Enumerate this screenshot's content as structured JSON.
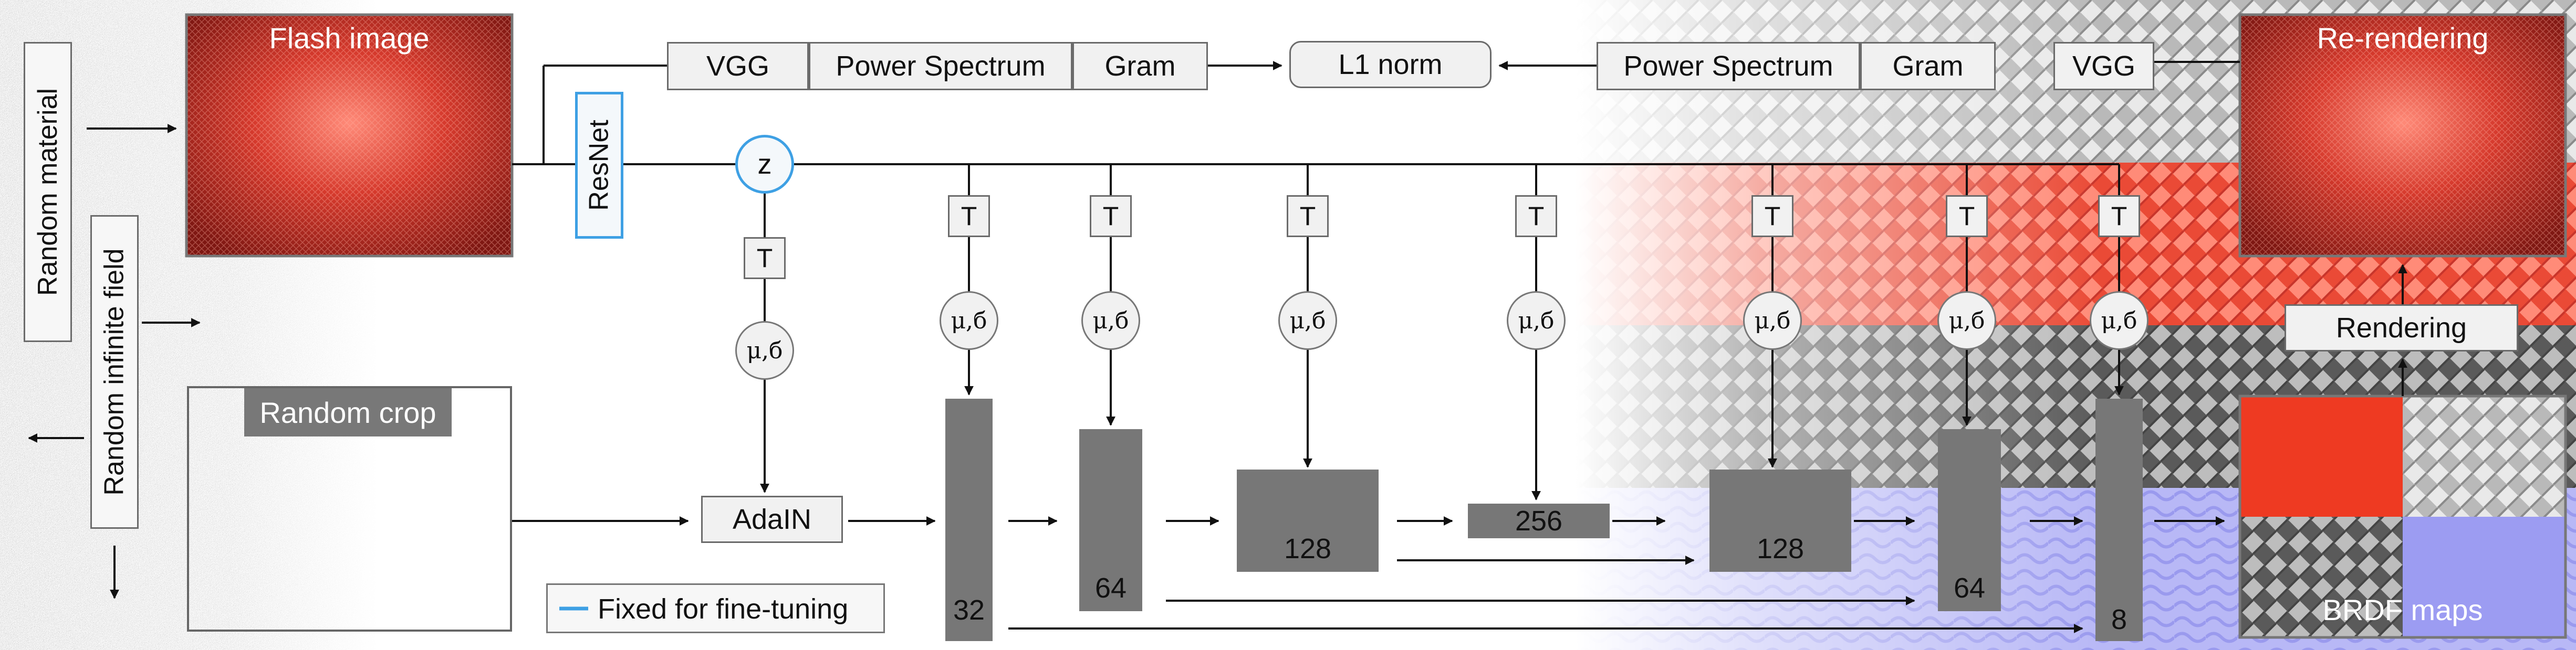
{
  "labels": {
    "random_material": "Random material",
    "random_infinite_field": "Random infinite field",
    "flash_image": "Flash image",
    "random_crop": "Random crop",
    "resnet": "ResNet",
    "z": "z",
    "vgg": "VGG",
    "power_spectrum": "Power Spectrum",
    "gram": "Gram",
    "l1_norm": "L1 norm",
    "t": "T",
    "mu_sigma": "μ,б",
    "adain": "AdaIN",
    "rendering": "Rendering",
    "re_rendering": "Re-rendering",
    "brdf_maps": "BRDF maps",
    "fixed_legend": "Fixed for fine-tuning"
  },
  "feature_maps": [
    "32",
    "64",
    "128",
    "256",
    "128",
    "64",
    "8"
  ],
  "colors": {
    "flash_red": "#c8352b",
    "fixed_blue": "#3ea0e4",
    "feature_gray": "#777777",
    "brdf_diffuse": "#ee3a22",
    "brdf_specular": "#a8a8a8",
    "brdf_roughness": "#444444",
    "brdf_normal": "#9c9cf2"
  }
}
